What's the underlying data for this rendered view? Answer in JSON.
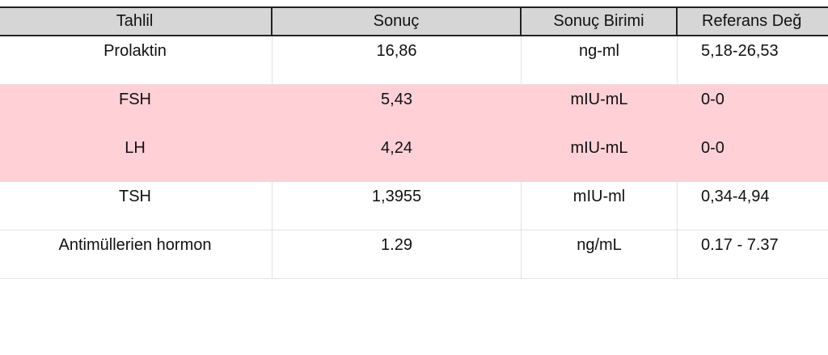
{
  "table": {
    "headers": [
      "Tahlil",
      "Sonuç",
      "Sonuç Birimi",
      "Referans Değ"
    ],
    "highlight_color": "#ffd1d6",
    "rows": [
      {
        "test": "Prolaktin",
        "result": "16,86",
        "unit": "ng-ml",
        "reference": "5,18-26,53",
        "highlighted": false
      },
      {
        "test": "FSH",
        "result": "5,43",
        "unit": "mIU-mL",
        "reference": "0-0",
        "highlighted": true
      },
      {
        "test": "LH",
        "result": "4,24",
        "unit": "mIU-mL",
        "reference": "0-0",
        "highlighted": true
      },
      {
        "test": "TSH",
        "result": "1,3955",
        "unit": "mIU-ml",
        "reference": "0,34-4,94",
        "highlighted": false
      },
      {
        "test": "Antimüllerien hormon",
        "result": "1.29",
        "unit": "ng/mL",
        "reference": "0.17 - 7.37",
        "highlighted": false
      }
    ]
  }
}
